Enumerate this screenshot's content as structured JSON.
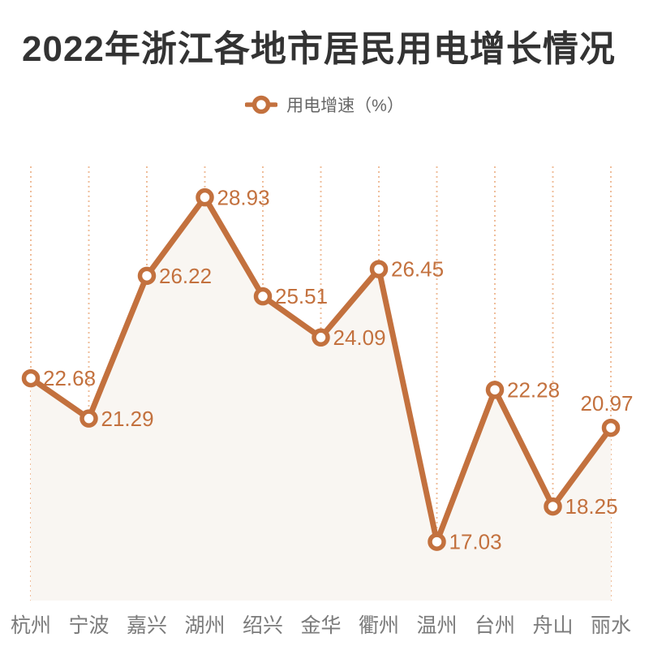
{
  "chart_data": {
    "type": "line",
    "title": "2022年浙江各地市居民用电增长情况",
    "legend": "用电增速（%）",
    "categories": [
      "杭州",
      "宁波",
      "嘉兴",
      "湖州",
      "绍兴",
      "金华",
      "衢州",
      "温州",
      "台州",
      "舟山",
      "丽水"
    ],
    "values": [
      22.68,
      21.29,
      26.22,
      28.93,
      25.51,
      24.09,
      26.45,
      17.03,
      22.28,
      18.25,
      20.97
    ],
    "ylim": [
      15,
      30
    ],
    "grid": "vertical-dotted",
    "legend_position": "top-center",
    "area_under_line": true,
    "label_above_indexes": [
      10
    ],
    "colors": {
      "accent": "#C3713E",
      "gridline": "#EFBD9A",
      "area_fill": "#F9F6F2",
      "title": "#333333",
      "axis_label": "#7B7B7B",
      "legend_text": "#666666",
      "marker_fill": "#FFFFFF"
    }
  }
}
